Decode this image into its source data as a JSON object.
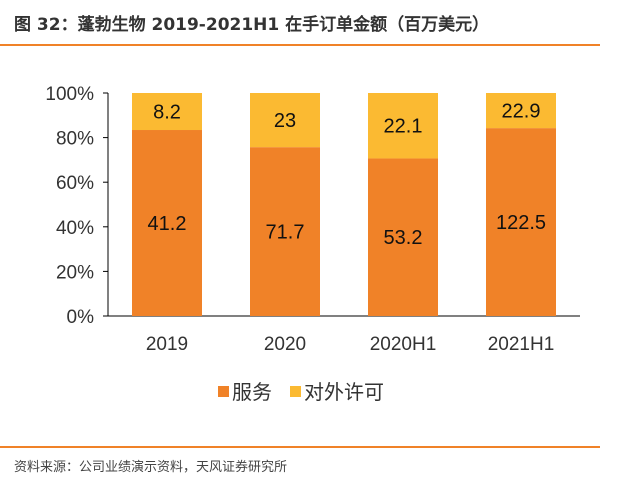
{
  "title": "图 32：蓬勃生物 2019-2021H1 在手订单金额（百万美元）",
  "source": "资料来源：公司业绩演示资料，天风证券研究所",
  "chart_data": {
    "type": "bar",
    "stacking": "percent",
    "categories": [
      "2019",
      "2020",
      "2020H1",
      "2021H1"
    ],
    "series": [
      {
        "name": "服务",
        "values": [
          41.2,
          71.7,
          53.2,
          122.5
        ],
        "color": "#F08228"
      },
      {
        "name": "对外许可",
        "values": [
          8.2,
          23,
          22.1,
          22.9
        ],
        "color": "#FBBA32"
      }
    ],
    "yticks": [
      "0%",
      "20%",
      "40%",
      "60%",
      "80%",
      "100%"
    ],
    "ylim": [
      0,
      100
    ],
    "grid": false,
    "legend": "bottom"
  }
}
